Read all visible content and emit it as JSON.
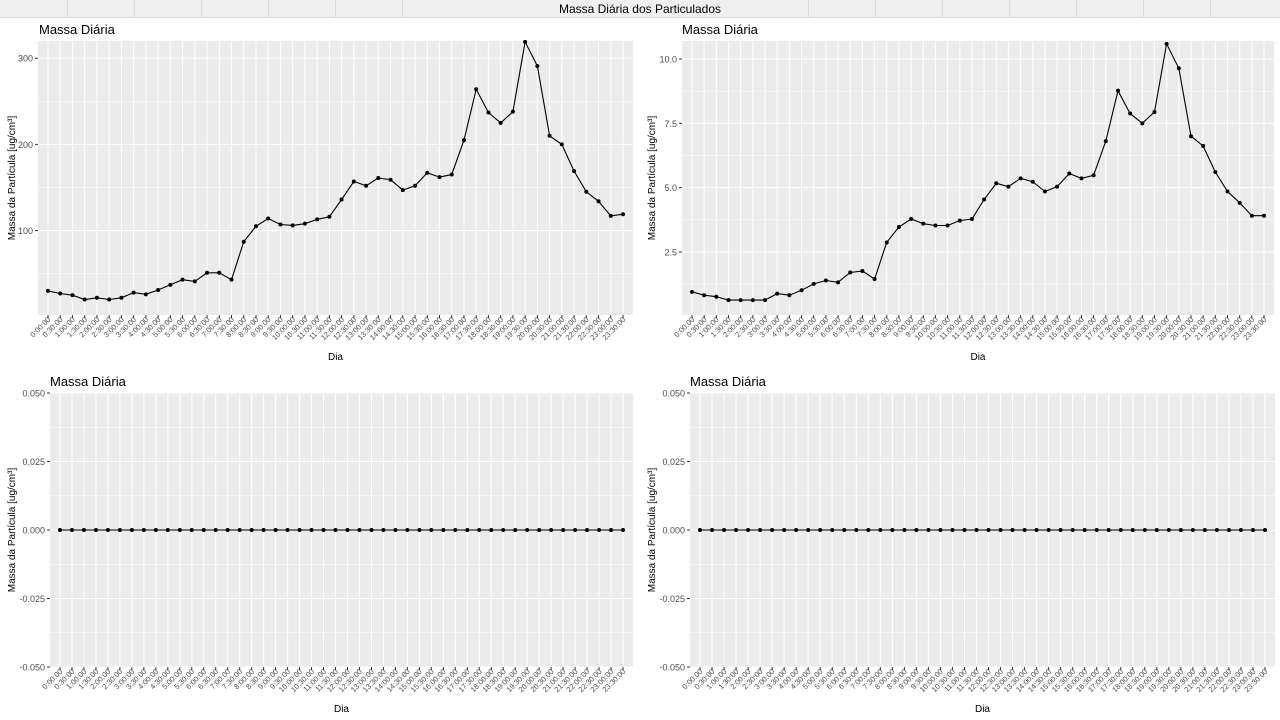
{
  "window": {
    "title": "Massa Diária dos Particulados"
  },
  "chart_data": [
    {
      "type": "line",
      "title": "Massa Diária",
      "xlabel": "Dia",
      "ylabel": "Massa da Partícula [ug/cm³]",
      "categories": [
        "0:00:00",
        "0:30:00",
        "1:00:00",
        "1:30:00",
        "2:00:00",
        "2:30:00",
        "3:00:00",
        "3:30:00",
        "4:00:00",
        "4:30:00",
        "5:00:00",
        "5:30:00",
        "6:00:00",
        "6:30:00",
        "7:00:00",
        "7:30:00",
        "8:00:00",
        "8:30:00",
        "9:00:00",
        "9:30:00",
        "10:00:00",
        "10:30:00",
        "11:00:00",
        "11:30:00",
        "12:00:00",
        "12:30:00",
        "13:00:00",
        "13:30:00",
        "14:00:00",
        "14:30:00",
        "15:00:00",
        "15:30:00",
        "16:00:00",
        "16:30:00",
        "17:00:00",
        "17:30:00",
        "18:00:00",
        "18:30:00",
        "19:00:00",
        "19:30:00",
        "20:00:00",
        "20:30:00",
        "21:00:00",
        "21:30:00",
        "22:00:00",
        "22:30:00",
        "23:00:00",
        "23:30:00"
      ],
      "values": [
        30,
        27,
        25,
        20,
        22,
        20,
        22,
        28,
        26,
        31,
        37,
        43,
        41,
        51,
        51,
        43,
        87,
        105,
        114,
        107,
        106,
        108,
        113,
        116,
        136,
        157,
        152,
        161,
        159,
        147,
        152,
        167,
        162,
        165,
        205,
        264,
        237,
        225,
        238,
        319,
        291,
        210,
        200,
        169,
        145,
        134,
        117,
        119
      ],
      "yticks": [
        100,
        200,
        300
      ],
      "ylim": [
        2,
        320
      ],
      "grid": true
    },
    {
      "type": "line",
      "title": "Massa Diária",
      "xlabel": "Dia",
      "ylabel": "Massa da Partícula [ug/cm³]",
      "categories": [
        "0:00:00",
        "0:30:00",
        "1:00:00",
        "1:30:00",
        "2:00:00",
        "2:30:00",
        "3:00:00",
        "3:30:00",
        "4:00:00",
        "4:30:00",
        "5:00:00",
        "5:30:00",
        "6:00:00",
        "6:30:00",
        "7:00:00",
        "7:30:00",
        "8:00:00",
        "8:30:00",
        "9:00:00",
        "9:30:00",
        "10:00:00",
        "10:30:00",
        "11:00:00",
        "11:30:00",
        "12:00:00",
        "12:30:00",
        "13:00:00",
        "13:30:00",
        "14:00:00",
        "14:30:00",
        "15:00:00",
        "15:30:00",
        "16:00:00",
        "16:30:00",
        "17:00:00",
        "17:30:00",
        "18:00:00",
        "18:30:00",
        "19:00:00",
        "19:30:00",
        "20:00:00",
        "20:30:00",
        "21:00:00",
        "21:30:00",
        "22:00:00",
        "22:30:00",
        "23:00:00",
        "23:30:00"
      ],
      "values": [
        0.95,
        0.82,
        0.76,
        0.63,
        0.63,
        0.63,
        0.63,
        0.88,
        0.82,
        1.01,
        1.26,
        1.39,
        1.32,
        1.7,
        1.76,
        1.45,
        2.87,
        3.47,
        3.78,
        3.6,
        3.53,
        3.53,
        3.72,
        3.78,
        4.54,
        5.17,
        5.04,
        5.36,
        5.23,
        4.85,
        5.04,
        5.55,
        5.36,
        5.48,
        6.81,
        8.77,
        7.88,
        7.5,
        7.94,
        10.59,
        9.64,
        7.0,
        6.62,
        5.61,
        4.85,
        4.41,
        3.91,
        3.91
      ],
      "yticks": [
        2.5,
        5.0,
        7.5,
        10.0
      ],
      "ytick_labels": [
        "2.5",
        "5.0",
        "7.5",
        "10.0"
      ],
      "ylim": [
        0.05,
        10.7
      ],
      "grid": true
    },
    {
      "type": "line",
      "title": "Massa Diária",
      "xlabel": "Dia",
      "ylabel": "Massa da Partícula [ug/cm³]",
      "categories": [
        "0:00:00",
        "0:30:00",
        "1:00:00",
        "1:30:00",
        "2:00:00",
        "2:30:00",
        "3:00:00",
        "3:30:00",
        "4:00:00",
        "4:30:00",
        "5:00:00",
        "5:30:00",
        "6:00:00",
        "6:30:00",
        "7:00:00",
        "7:30:00",
        "8:00:00",
        "8:30:00",
        "9:00:00",
        "9:30:00",
        "10:00:00",
        "10:30:00",
        "11:00:00",
        "11:30:00",
        "12:00:00",
        "12:30:00",
        "13:00:00",
        "13:30:00",
        "14:00:00",
        "14:30:00",
        "15:00:00",
        "15:30:00",
        "16:00:00",
        "16:30:00",
        "17:00:00",
        "17:30:00",
        "18:00:00",
        "18:30:00",
        "19:00:00",
        "19:30:00",
        "20:00:00",
        "20:30:00",
        "21:00:00",
        "21:30:00",
        "22:00:00",
        "22:30:00",
        "23:00:00",
        "23:30:00"
      ],
      "values": [
        0,
        0,
        0,
        0,
        0,
        0,
        0,
        0,
        0,
        0,
        0,
        0,
        0,
        0,
        0,
        0,
        0,
        0,
        0,
        0,
        0,
        0,
        0,
        0,
        0,
        0,
        0,
        0,
        0,
        0,
        0,
        0,
        0,
        0,
        0,
        0,
        0,
        0,
        0,
        0,
        0,
        0,
        0,
        0,
        0,
        0,
        0,
        0
      ],
      "yticks": [
        -0.05,
        -0.025,
        0,
        0.025,
        0.05
      ],
      "ytick_labels": [
        "-0.050",
        "-0.025",
        "0.000",
        "0.025",
        "0.050"
      ],
      "ylim": [
        -0.05,
        0.05
      ],
      "grid": true
    },
    {
      "type": "line",
      "title": "Massa Diária",
      "xlabel": "Dia",
      "ylabel": "Massa da Partícula [ug/cm³]",
      "categories": [
        "0:00:00",
        "0:30:00",
        "1:00:00",
        "1:30:00",
        "2:00:00",
        "2:30:00",
        "3:00:00",
        "3:30:00",
        "4:00:00",
        "4:30:00",
        "5:00:00",
        "5:30:00",
        "6:00:00",
        "6:30:00",
        "7:00:00",
        "7:30:00",
        "8:00:00",
        "8:30:00",
        "9:00:00",
        "9:30:00",
        "10:00:00",
        "10:30:00",
        "11:00:00",
        "11:30:00",
        "12:00:00",
        "12:30:00",
        "13:00:00",
        "13:30:00",
        "14:00:00",
        "14:30:00",
        "15:00:00",
        "15:30:00",
        "16:00:00",
        "16:30:00",
        "17:00:00",
        "17:30:00",
        "18:00:00",
        "18:30:00",
        "19:00:00",
        "19:30:00",
        "20:00:00",
        "20:30:00",
        "21:00:00",
        "21:30:00",
        "22:00:00",
        "22:30:00",
        "23:00:00",
        "23:30:00"
      ],
      "values": [
        0,
        0,
        0,
        0,
        0,
        0,
        0,
        0,
        0,
        0,
        0,
        0,
        0,
        0,
        0,
        0,
        0,
        0,
        0,
        0,
        0,
        0,
        0,
        0,
        0,
        0,
        0,
        0,
        0,
        0,
        0,
        0,
        0,
        0,
        0,
        0,
        0,
        0,
        0,
        0,
        0,
        0,
        0,
        0,
        0,
        0,
        0,
        0
      ],
      "yticks": [
        -0.05,
        -0.025,
        0,
        0.025,
        0.05
      ],
      "ytick_labels": [
        "-0.050",
        "-0.025",
        "0.000",
        "0.025",
        "0.050"
      ],
      "ylim": [
        -0.05,
        0.05
      ],
      "grid": true
    }
  ],
  "colors": {
    "panel_bg": "#ebebeb",
    "grid": "#ffffff",
    "line": "#000000",
    "axis_text": "#4d4d4d"
  }
}
